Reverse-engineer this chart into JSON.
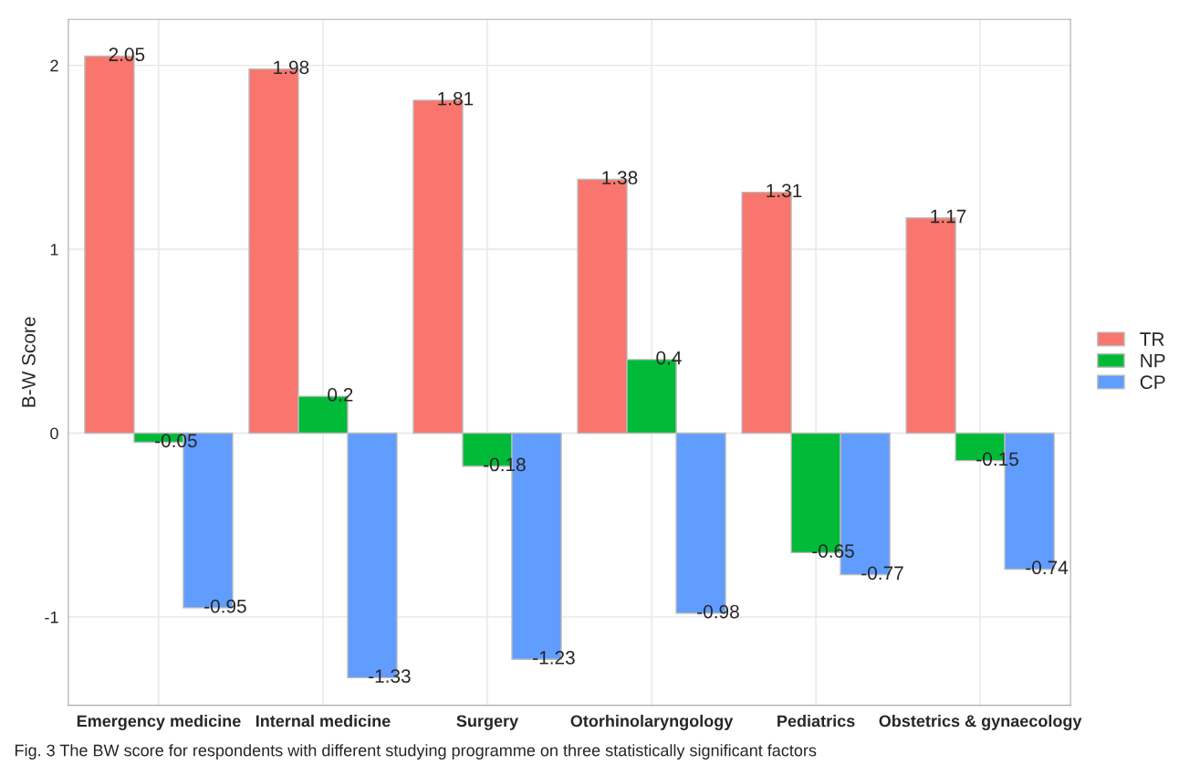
{
  "chart_data": {
    "type": "bar",
    "ylabel": "B-W Score",
    "categories": [
      "Emergency medicine",
      "Internal medicine",
      "Surgery",
      "Otorhinolaryngology",
      "Pediatrics",
      "Obstetrics & gynaecology"
    ],
    "series": [
      {
        "name": "TR",
        "color": "#f8766d",
        "values": [
          2.05,
          1.98,
          1.81,
          1.38,
          1.31,
          1.17
        ]
      },
      {
        "name": "NP",
        "color": "#00ba38",
        "values": [
          -0.05,
          0.2,
          -0.18,
          0.4,
          -0.65,
          -0.15
        ]
      },
      {
        "name": "CP",
        "color": "#619cff",
        "values": [
          -0.95,
          -1.33,
          -1.23,
          -0.98,
          -0.77,
          -0.74
        ]
      }
    ],
    "ylim": [
      -1.48,
      2.25
    ],
    "yticks": [
      -1,
      0,
      1,
      2
    ],
    "grid": true,
    "legend": "right",
    "data_labels": true,
    "annotations": [
      "Fig. 3 The BW score for respondents with different studying programme on three statistically significant factors"
    ]
  }
}
